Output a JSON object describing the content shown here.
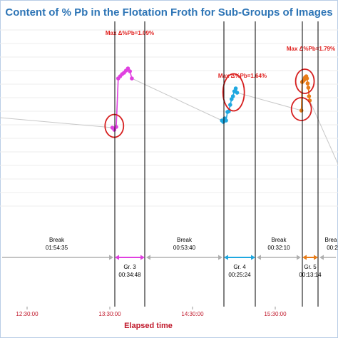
{
  "title": "Content of % Pb in the Flotation Froth for Sub-Groups of Images",
  "xlabel": "Elapsed time",
  "chart_data": {
    "type": "line",
    "title": "Content of % Pb in the Flotation Froth for Sub-Groups of Images",
    "xlabel": "Elapsed time",
    "ylabel": "",
    "x_ticks": [
      "12:30:00",
      "13:30:00",
      "14:30:00",
      "15:30:00"
    ],
    "grid": true,
    "series": [
      {
        "group": "Gr. 3",
        "color": "#e040e0",
        "x": [
          "13:31:50",
          "13:33:15",
          "13:34:40",
          "13:36:05",
          "13:37:30",
          "13:38:55",
          "13:40:20",
          "13:41:45",
          "13:43:10",
          "13:44:35",
          "13:46:00"
        ],
        "values": [
          5.8,
          5.65,
          5.85,
          9.25,
          9.4,
          9.55,
          9.65,
          9.8,
          9.95,
          9.75,
          9.25
        ]
      },
      {
        "group": "Gr. 4",
        "color": "#1fa8e0",
        "x": [
          "14:51:20",
          "14:52:20",
          "14:53:20",
          "14:54:20",
          "14:55:20",
          "14:56:20",
          "14:57:20",
          "14:58:20",
          "14:59:20",
          "15:00:20",
          "15:01:20",
          "15:02:20"
        ],
        "values": [
          6.3,
          6.2,
          6.45,
          6.3,
          6.9,
          6.95,
          7.4,
          7.8,
          8.0,
          8.35,
          8.55,
          8.25
        ]
      },
      {
        "group": "Gr. 5",
        "color": "#e87c18",
        "x": [
          "15:48:58",
          "15:49:30",
          "15:50:00",
          "15:50:30",
          "15:51:00",
          "15:51:30",
          "15:52:00",
          "15:52:30",
          "15:53:00",
          "15:53:30",
          "15:54:00",
          "15:54:30",
          "15:55:00"
        ],
        "values": [
          7.0,
          9.0,
          9.05,
          9.1,
          9.15,
          9.3,
          9.35,
          9.4,
          9.25,
          8.9,
          8.6,
          8.0,
          7.7
        ]
      }
    ],
    "annotations": [
      {
        "text": "Max Δ%Pb=1.09%",
        "color": "#e0201e"
      },
      {
        "text": "Max Δ%Pb=1.64%",
        "color": "#e0201e"
      },
      {
        "text": "Max Δ%Pb=1.79%",
        "color": "#e0201e"
      }
    ],
    "intervals": [
      {
        "label": "Break",
        "duration": "01:54:35",
        "color": "#b0b0b0"
      },
      {
        "label": "Gr. 3",
        "duration": "00:34:48",
        "color": "#e040e0"
      },
      {
        "label": "Break",
        "duration": "00:53:40",
        "color": "#b0b0b0"
      },
      {
        "label": "Gr. 4",
        "duration": "00:25:24",
        "color": "#1fa8e0"
      },
      {
        "label": "Break",
        "duration": "00:32:10",
        "color": "#b0b0b0"
      },
      {
        "label": "Gr. 5",
        "duration": "00:13:14",
        "color": "#e87c18"
      },
      {
        "label": "Brea",
        "duration": "00:2",
        "color": "#b0b0b0"
      }
    ]
  }
}
